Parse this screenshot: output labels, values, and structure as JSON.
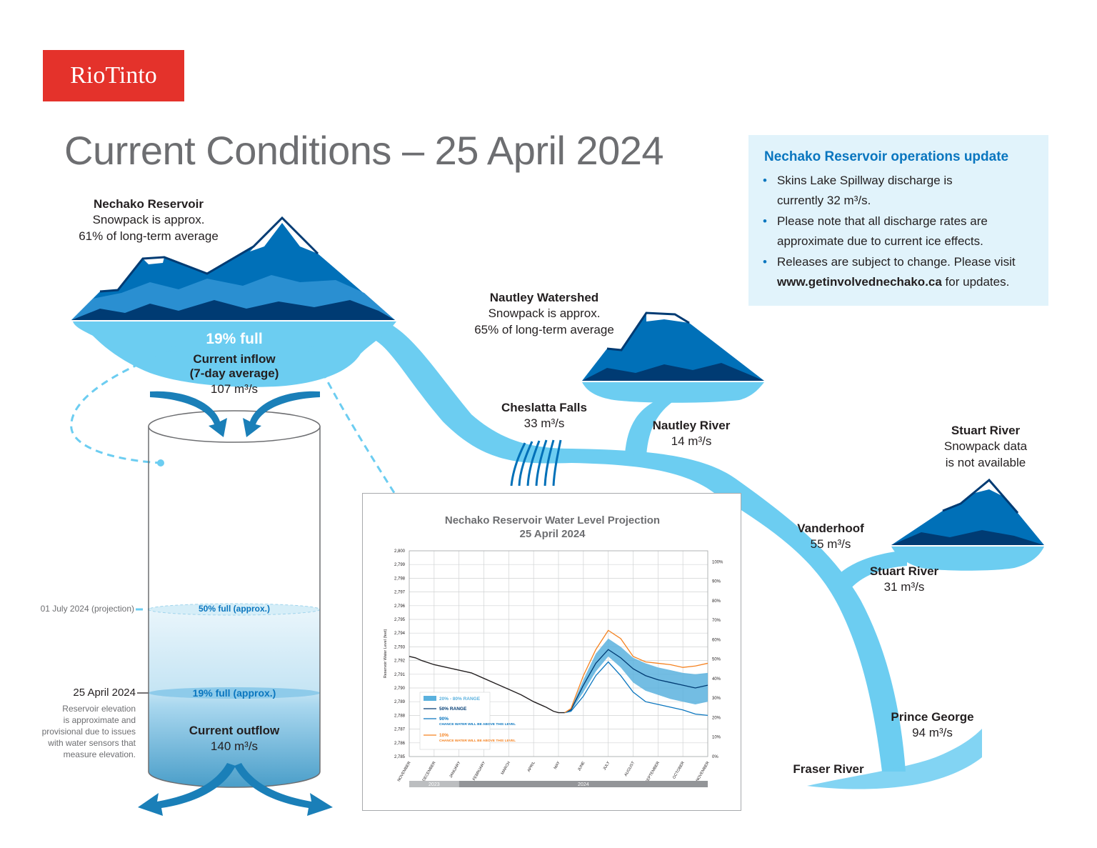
{
  "logo": {
    "text": "RioTinto",
    "color": "#e4322b"
  },
  "title": "Current Conditions – 25 April 2024",
  "nechako_reservoir": {
    "name": "Nechako Reservoir",
    "line1": "Snowpack is approx.",
    "line2": "61% of long-term average",
    "full": "19% full",
    "inflow_label": "Current inflow",
    "inflow_sub": "(7-day average)",
    "inflow_value": "107 m³/s"
  },
  "nautley_watershed": {
    "name": "Nautley Watershed",
    "line1": "Snowpack is approx.",
    "line2": "65% of long-term average"
  },
  "cheslatta": {
    "name": "Cheslatta Falls",
    "value": "33 m³/s"
  },
  "nautley_river": {
    "name": "Nautley River",
    "value": "14 m³/s"
  },
  "stuart_watershed": {
    "name": "Stuart River",
    "line1": "Snowpack data",
    "line2": "is not available"
  },
  "vanderhoof": {
    "name": "Vanderhoof",
    "value": "55 m³/s"
  },
  "stuart_river": {
    "name": "Stuart River",
    "value": "31 m³/s"
  },
  "prince_george": {
    "name": "Prince George",
    "value": "94 m³/s"
  },
  "fraser": {
    "name": "Fraser River"
  },
  "cylinder": {
    "projection_label": "01 July 2024 (projection)",
    "projection_level": "50% full (approx.)",
    "projection_fill": 0.5,
    "current_date": "25 April 2024",
    "current_level": "19% full (approx.)",
    "current_fill": 0.19,
    "note": [
      "Reservoir elevation",
      "is approximate and",
      "provisional due to issues",
      "with water sensors that",
      "measure elevation."
    ],
    "outflow_label": "Current outflow",
    "outflow_value": "140 m³/s"
  },
  "infobox": {
    "heading": "Nechako Reservoir operations update",
    "items": [
      [
        "Skins Lake Spillway discharge is",
        "currently 32 m³/s."
      ],
      [
        "Please note that all discharge rates are",
        "approximate due to current ice effects."
      ],
      [
        "Releases are subject to change. Please visit",
        "www.getinvolvednechako.ca",
        " for updates."
      ]
    ]
  },
  "colors": {
    "river": "#6ccdf1",
    "mountain_dark": "#003b73",
    "mountain_mid": "#0070b8",
    "mountain_light": "#2a8fd1",
    "accent_blue": "#0a76bf",
    "band": "#5ab1de"
  },
  "chart_data": {
    "type": "line",
    "title": "Nechako Reservoir Water Level Projection",
    "subtitle": "25 April 2024",
    "ylabel": "Reservoir Water Level (feet)",
    "ylim": [
      2785,
      2800
    ],
    "yticks": [
      "2,785",
      "2,786",
      "2,787",
      "2,788",
      "2,789",
      "2,790",
      "2,791",
      "2,792",
      "2,793",
      "2,794",
      "2,795",
      "2,796",
      "2,797",
      "2,798",
      "2,799",
      "2,800"
    ],
    "y2ticks": [
      "0%",
      "10%",
      "20%",
      "30%",
      "40%",
      "50%",
      "60%",
      "70%",
      "80%",
      "90%",
      "100%"
    ],
    "months": [
      "NOVEMBER",
      "DECEMBER",
      "JANUARY",
      "FEBRUARY",
      "MARCH",
      "APRIL",
      "MAY",
      "JUNE",
      "JULY",
      "AUGUST",
      "SEPTEMBER",
      "OCTOBER",
      "NOVEMBER"
    ],
    "years": [
      {
        "label": "2023",
        "start": 0,
        "end": 2
      },
      {
        "label": "2024",
        "start": 2,
        "end": 12
      }
    ],
    "legend": [
      {
        "label": "20% - 80% RANGE"
      },
      {
        "label": "50% RANGE"
      },
      {
        "label": "90%",
        "sub": "CHANCE WATER WILL BE ABOVE THIS LEVEL"
      },
      {
        "label": "10%",
        "sub": "CHANCE WATER WILL BE ABOVE THIS LEVEL"
      }
    ],
    "series": [
      {
        "key": "observed",
        "color": "#231f20",
        "x": [
          0,
          0.25,
          0.5,
          1,
          1.5,
          2,
          2.5,
          3,
          3.5,
          4,
          4.5,
          5,
          5.5,
          5.8,
          6,
          6.25
        ],
        "y": [
          2792.3,
          2792.2,
          2792.0,
          2791.7,
          2791.5,
          2791.3,
          2791.1,
          2790.7,
          2790.3,
          2789.9,
          2789.5,
          2789.0,
          2788.6,
          2788.3,
          2788.2,
          2788.2
        ]
      },
      {
        "key": "median",
        "color": "#003b73",
        "x": [
          6.25,
          6.5,
          7,
          7.5,
          8,
          8.5,
          9,
          9.5,
          10,
          10.5,
          11,
          11.5,
          12
        ],
        "y": [
          2788.2,
          2788.4,
          2790.2,
          2791.8,
          2792.8,
          2792.2,
          2791.4,
          2790.9,
          2790.6,
          2790.4,
          2790.2,
          2790.0,
          2790.2
        ]
      },
      {
        "key": "p90",
        "color": "#0a76bf",
        "x": [
          6.25,
          6.5,
          7,
          7.5,
          8,
          8.5,
          9,
          9.5,
          10,
          10.5,
          11,
          11.5,
          12
        ],
        "y": [
          2788.2,
          2788.3,
          2789.4,
          2790.9,
          2791.9,
          2790.9,
          2789.7,
          2789.0,
          2788.8,
          2788.6,
          2788.4,
          2788.1,
          2788.0
        ]
      },
      {
        "key": "p10",
        "color": "#f58220",
        "x": [
          6.25,
          6.5,
          7,
          7.5,
          8,
          8.5,
          9,
          9.5,
          10,
          10.5,
          11,
          11.5,
          12
        ],
        "y": [
          2788.2,
          2788.5,
          2790.9,
          2792.8,
          2794.2,
          2793.6,
          2792.3,
          2791.9,
          2791.8,
          2791.7,
          2791.5,
          2791.6,
          2791.8
        ]
      }
    ],
    "band": {
      "x": [
        6.25,
        6.5,
        7,
        7.5,
        8,
        8.5,
        9,
        9.5,
        10,
        10.5,
        11,
        11.5,
        12
      ],
      "lo": [
        2788.2,
        2788.3,
        2789.7,
        2791.2,
        2792.3,
        2791.5,
        2790.4,
        2789.8,
        2789.5,
        2789.2,
        2789.0,
        2788.8,
        2789.0
      ],
      "hi": [
        2788.2,
        2788.5,
        2790.6,
        2792.5,
        2793.6,
        2793.0,
        2792.2,
        2791.8,
        2791.5,
        2791.3,
        2791.1,
        2791.0,
        2791.1
      ]
    }
  }
}
